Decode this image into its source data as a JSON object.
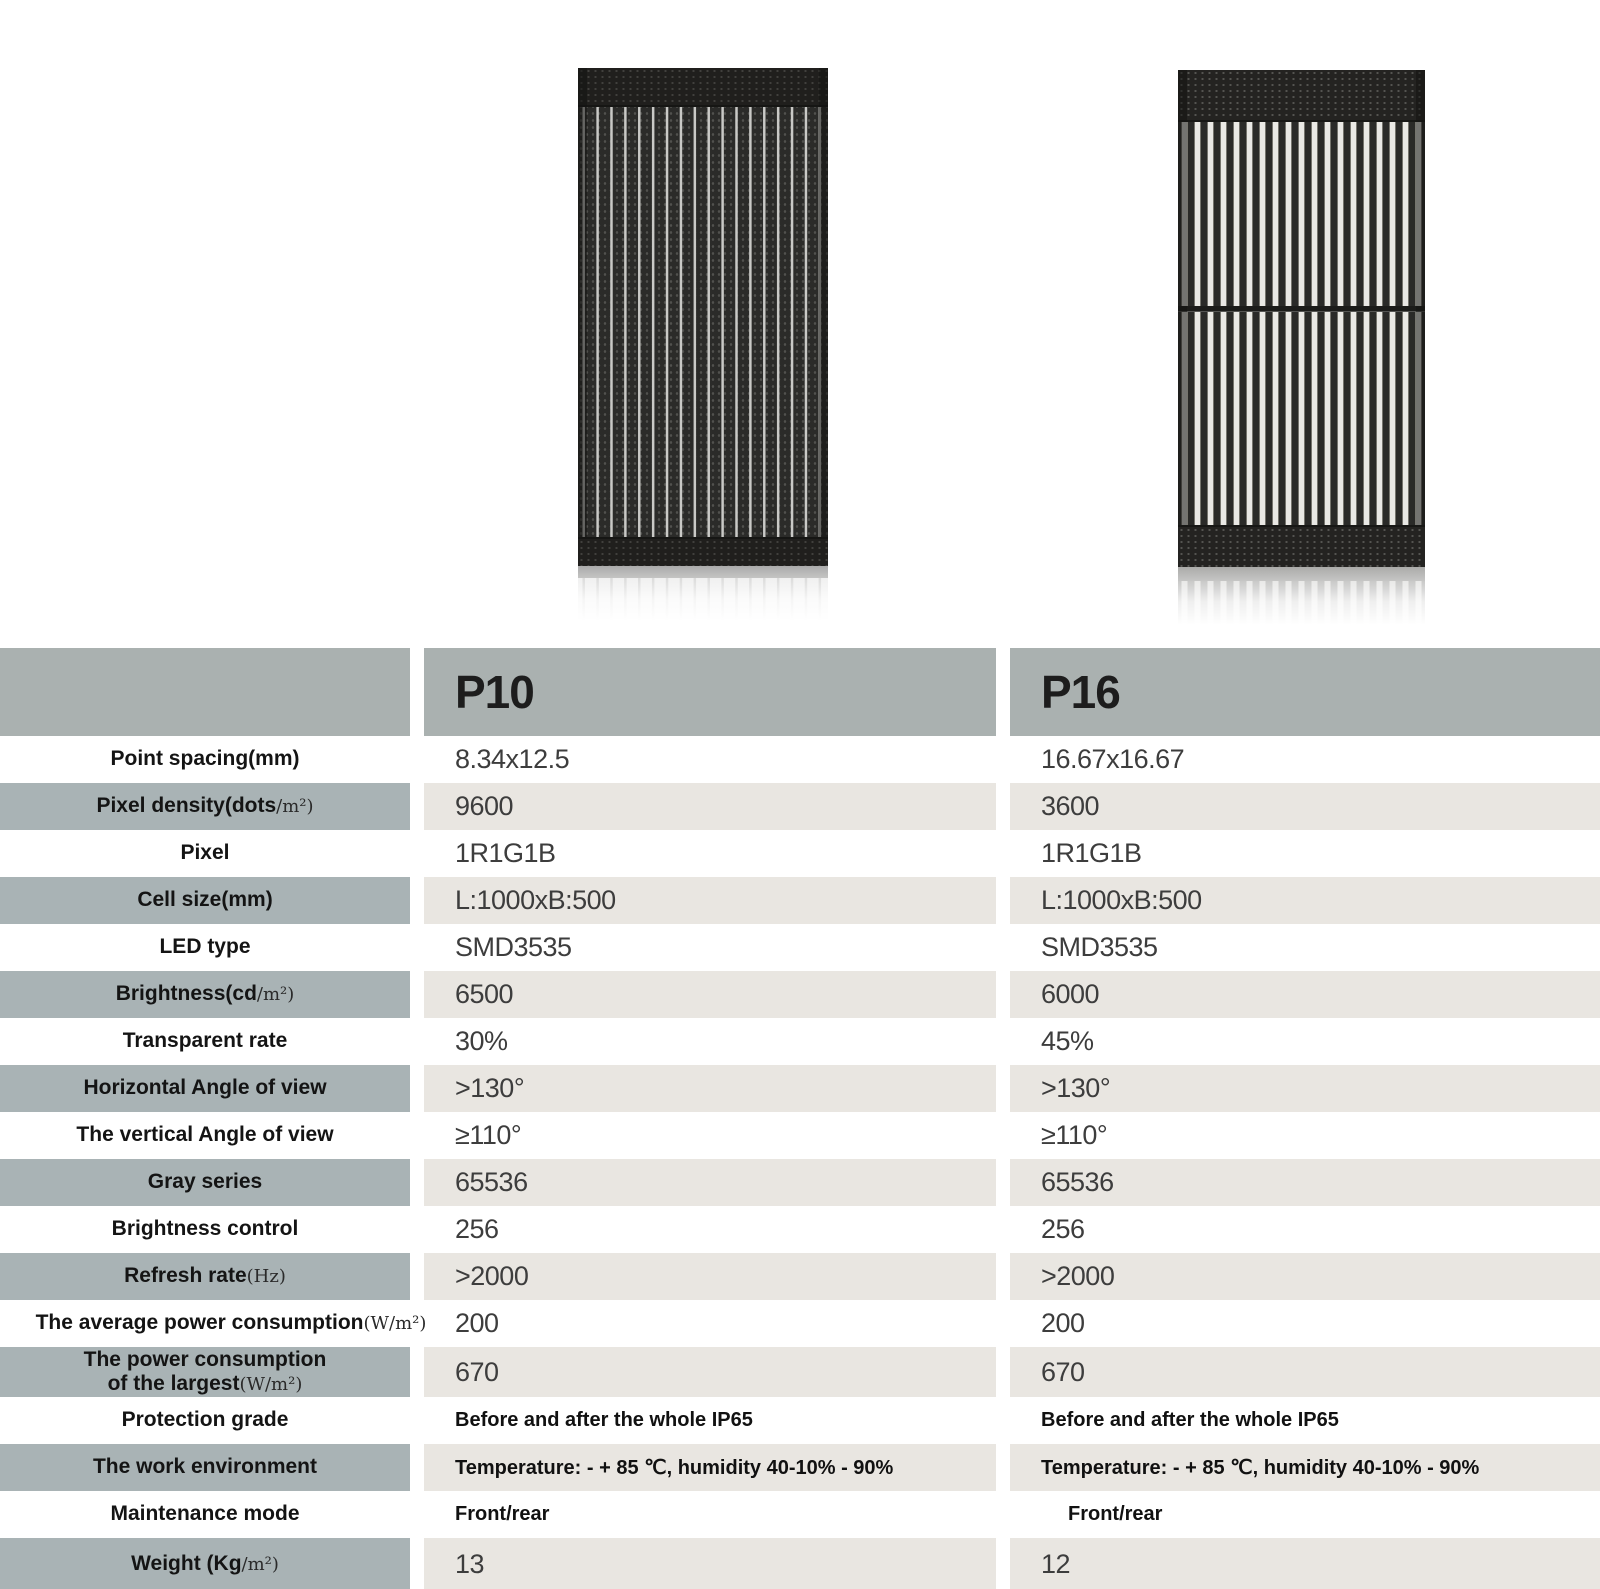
{
  "table": {
    "columns": [
      "P10",
      "P16"
    ],
    "rows": [
      {
        "label": "Point spacing(mm)",
        "unit": "",
        "p10": "8.34x12.5",
        "p16": "16.67x16.67"
      },
      {
        "label": "Pixel density(dots",
        "unit": "/m²)",
        "p10": "9600",
        "p16": "3600"
      },
      {
        "label": "Pixel",
        "unit": "",
        "p10": "1R1G1B",
        "p16": "1R1G1B"
      },
      {
        "label": "Cell size(mm)",
        "unit": "",
        "p10": "L:1000xB:500",
        "p16": "L:1000xB:500"
      },
      {
        "label": "LED type",
        "unit": "",
        "p10": "SMD3535",
        "p16": "SMD3535"
      },
      {
        "label": "Brightness(cd",
        "unit": "/m²)",
        "p10": "6500",
        "p16": "6000"
      },
      {
        "label": "Transparent rate",
        "unit": "",
        "p10": "30%",
        "p16": "45%"
      },
      {
        "label": "Horizontal Angle of view",
        "unit": "",
        "p10": ">130°",
        "p16": ">130°"
      },
      {
        "label": "The vertical Angle of view",
        "unit": "",
        "p10": "≥110°",
        "p16": "≥110°"
      },
      {
        "label": "Gray series",
        "unit": "",
        "p10": "65536",
        "p16": "65536"
      },
      {
        "label": "Brightness control",
        "unit": "",
        "p10": "256",
        "p16": "256"
      },
      {
        "label": "Refresh rate",
        "unit": "(Hz)",
        "p10": ">2000",
        "p16": ">2000"
      },
      {
        "label": "The average power consumption",
        "unit": "(W/m²)",
        "p10": "200",
        "p16": "200"
      },
      {
        "label": "The power consumption\nof the largest",
        "unit": "(W/m²)",
        "p10": "670",
        "p16": "670"
      },
      {
        "label": "Protection grade",
        "unit": "",
        "p10": "Before and after the whole IP65",
        "p16": "Before and after the whole IP65"
      },
      {
        "label": "The work environment",
        "unit": "",
        "p10": "Temperature: - + 85 ℃, humidity 40-10% - 90%",
        "p16": "Temperature: - + 85 ℃, humidity 40-10% - 90%"
      },
      {
        "label": "Maintenance mode",
        "unit": "",
        "p10": "Front/rear",
        "p16": "Front/rear"
      },
      {
        "label": "Weight (Kg",
        "unit": "/m²)",
        "p10": "13",
        "p16": "12"
      }
    ]
  }
}
